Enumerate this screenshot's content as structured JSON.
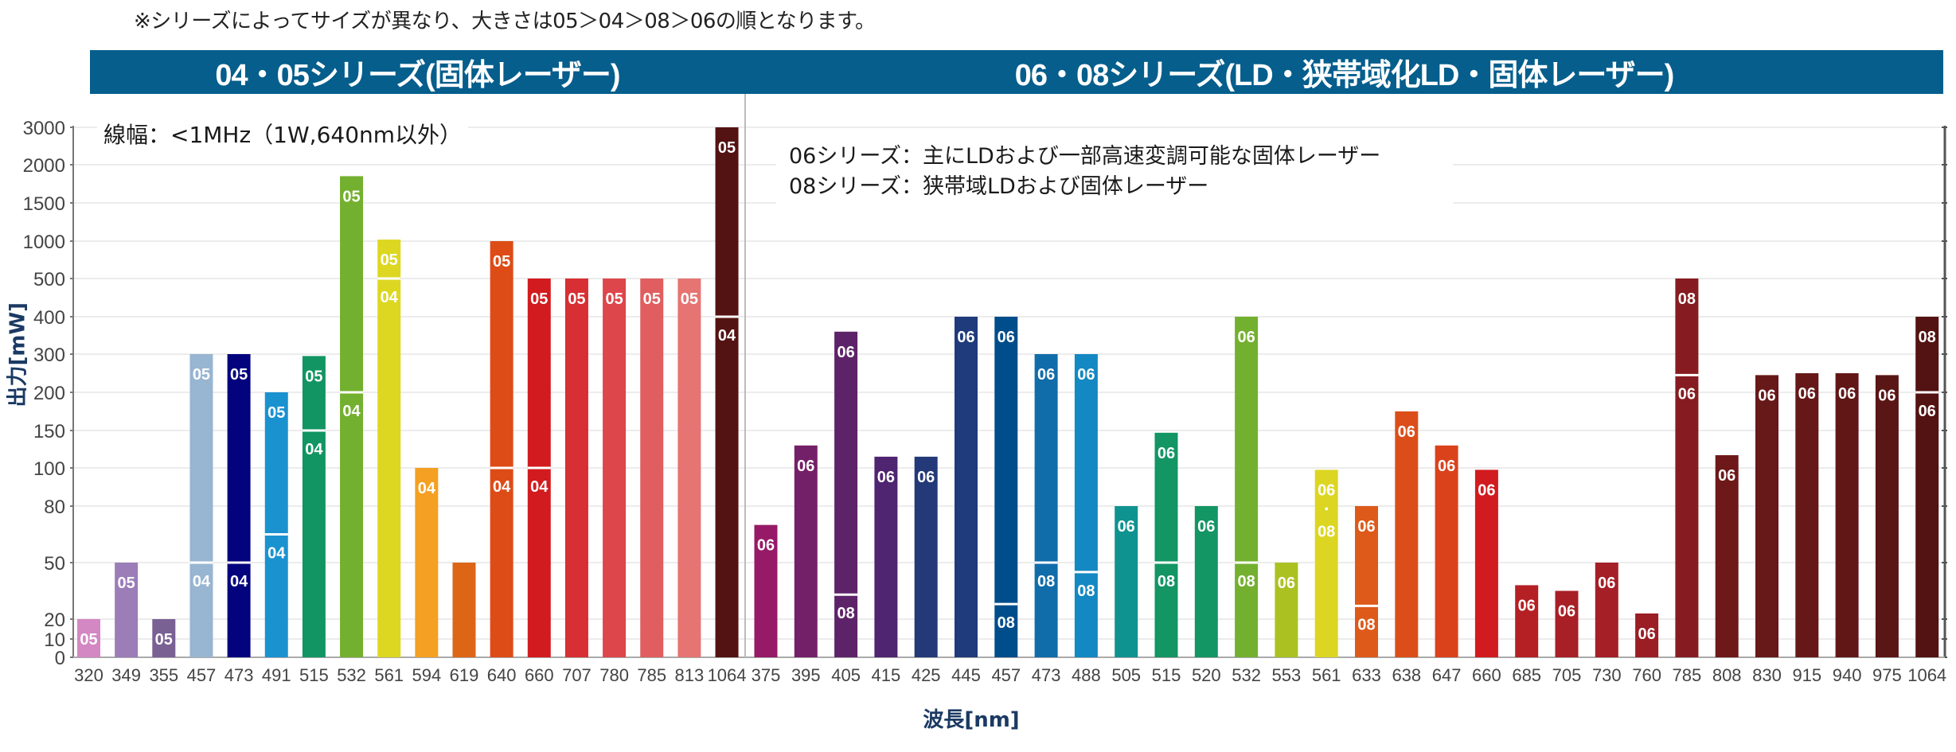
{
  "note_top": "※シリーズによってサイズが異なり、大きさは05＞04＞08＞06の順となります。",
  "bands": {
    "left": "04・05シリーズ(固体レーザー)",
    "right": "06・08シリーズ(LD・狭帯域化LD・固体レーザー)"
  },
  "linewidth_note": "線幅：<1MHz（1W,640nm以外）",
  "legend": {
    "line1": "06シリーズ：主にLDおよび一部高速変調可能な固体レーザー",
    "line2": "08シリーズ：狭帯域LDおよび固体レーザー"
  },
  "colors": {
    "band": "#055E8C",
    "axis_label": "#1B3A63",
    "grid": "#ececec",
    "axis": "#777777"
  },
  "chart_data": {
    "type": "bar",
    "title": "",
    "xlabel": "波長[nm]",
    "ylabel": "出力[mW]",
    "y_scale": "custom-nonlinear",
    "yticks": [
      0,
      10,
      20,
      50,
      80,
      100,
      150,
      200,
      300,
      400,
      500,
      1000,
      1500,
      2000,
      3000
    ],
    "ytick_labels": [
      "0",
      "10",
      "20",
      "50",
      "80",
      "100",
      "150",
      "200",
      "300",
      "400",
      "500",
      "1000",
      "1500",
      "2000",
      "3000"
    ],
    "ylim": [
      0,
      3000
    ],
    "grid": true,
    "groups": [
      {
        "name": "04・05シリーズ",
        "bars": [
          {
            "x": "320",
            "value": 20,
            "color": "#D387C3",
            "segments": [
              {
                "series": "05"
              }
            ]
          },
          {
            "x": "349",
            "value": 50,
            "color": "#9B7DB8",
            "segments": [
              {
                "series": "05"
              }
            ]
          },
          {
            "x": "355",
            "value": 20,
            "color": "#7A6194",
            "segments": [
              {
                "series": "05"
              }
            ]
          },
          {
            "x": "457",
            "value": 300,
            "color": "#98B5D1",
            "split": 50,
            "segments": [
              {
                "series": "05"
              },
              {
                "series": "04"
              }
            ]
          },
          {
            "x": "473",
            "value": 300,
            "color": "#03037E",
            "split": 50,
            "segments": [
              {
                "series": "05"
              },
              {
                "series": "04"
              }
            ]
          },
          {
            "x": "491",
            "value": 200,
            "color": "#1A92D0",
            "split": 65,
            "segments": [
              {
                "series": "05"
              },
              {
                "series": "04"
              }
            ]
          },
          {
            "x": "515",
            "value": 295,
            "color": "#129562",
            "split": 150,
            "segments": [
              {
                "series": "05"
              },
              {
                "series": "04"
              }
            ]
          },
          {
            "x": "532",
            "value": 1850,
            "color": "#74B02F",
            "split": 200,
            "segments": [
              {
                "series": "05"
              },
              {
                "series": "04"
              }
            ]
          },
          {
            "x": "561",
            "value": 1020,
            "color": "#DDD722",
            "split": 500,
            "segments": [
              {
                "series": "05"
              },
              {
                "series": "04"
              }
            ]
          },
          {
            "x": "594",
            "value": 100,
            "color": "#F4A023",
            "segments": [
              {
                "series": "04"
              }
            ]
          },
          {
            "x": "619",
            "value": 50,
            "color": "#DD6516",
            "segments": []
          },
          {
            "x": "640",
            "value": 1000,
            "color": "#DD4C17",
            "split": 100,
            "segments": [
              {
                "series": "05"
              },
              {
                "series": "04"
              }
            ]
          },
          {
            "x": "660",
            "value": 500,
            "color": "#D21B1E",
            "split": 100,
            "segments": [
              {
                "series": "05"
              },
              {
                "series": "04"
              }
            ]
          },
          {
            "x": "707",
            "value": 500,
            "color": "#D72F33",
            "segments": [
              {
                "series": "05"
              }
            ]
          },
          {
            "x": "780",
            "value": 500,
            "color": "#DD464B",
            "segments": [
              {
                "series": "05"
              }
            ]
          },
          {
            "x": "785",
            "value": 500,
            "color": "#E05E5F",
            "segments": [
              {
                "series": "05"
              }
            ]
          },
          {
            "x": "813",
            "value": 500,
            "color": "#E57473",
            "segments": [
              {
                "series": "05"
              }
            ]
          },
          {
            "x": "1064",
            "value": 3000,
            "color": "#531312",
            "split": 400,
            "segments": [
              {
                "series": "05"
              },
              {
                "series": "04"
              }
            ]
          }
        ]
      },
      {
        "name": "06・08シリーズ",
        "bars": [
          {
            "x": "375",
            "value": 70,
            "color": "#961A68",
            "segments": [
              {
                "series": "06"
              }
            ]
          },
          {
            "x": "395",
            "value": 130,
            "color": "#742068",
            "segments": [
              {
                "series": "06"
              }
            ]
          },
          {
            "x": "405",
            "value": 360,
            "color": "#5D2368",
            "split": 33,
            "segments": [
              {
                "series": "06"
              },
              {
                "series": "08"
              }
            ]
          },
          {
            "x": "415",
            "value": 115,
            "color": "#4F2470",
            "segments": [
              {
                "series": "06"
              }
            ]
          },
          {
            "x": "425",
            "value": 115,
            "color": "#233978",
            "segments": [
              {
                "series": "06"
              }
            ]
          },
          {
            "x": "445",
            "value": 400,
            "color": "#1F3B7B",
            "segments": [
              {
                "series": "06"
              }
            ]
          },
          {
            "x": "457",
            "value": 400,
            "color": "#004D8B",
            "split": 28,
            "segments": [
              {
                "series": "06"
              },
              {
                "series": "08"
              }
            ]
          },
          {
            "x": "473",
            "value": 300,
            "color": "#116CAA",
            "split": 50,
            "segments": [
              {
                "series": "06"
              },
              {
                "series": "08"
              }
            ]
          },
          {
            "x": "488",
            "value": 300,
            "color": "#1488C2",
            "split": 45,
            "segments": [
              {
                "series": "06"
              },
              {
                "series": "08"
              }
            ]
          },
          {
            "x": "505",
            "value": 80,
            "color": "#0F9391",
            "segments": [
              {
                "series": "06"
              }
            ]
          },
          {
            "x": "515",
            "value": 147,
            "color": "#139564",
            "split": 50,
            "segments": [
              {
                "series": "06"
              },
              {
                "series": "08"
              }
            ]
          },
          {
            "x": "520",
            "value": 80,
            "color": "#139564",
            "segments": [
              {
                "series": "06"
              }
            ]
          },
          {
            "x": "532",
            "value": 400,
            "color": "#74B02F",
            "split": 50,
            "segments": [
              {
                "series": "06"
              },
              {
                "series": "08"
              }
            ]
          },
          {
            "x": "553",
            "value": 50,
            "color": "#ABC122",
            "segments": [
              {
                "series": "06"
              }
            ]
          },
          {
            "x": "561",
            "value": 99,
            "color": "#DCD622",
            "segments": [
              {
                "series": "06",
                "and": "・",
                "series2": "08"
              }
            ]
          },
          {
            "x": "633",
            "value": 80,
            "color": "#DD5A1A",
            "split": 27,
            "segments": [
              {
                "series": "06"
              },
              {
                "series": "08"
              }
            ]
          },
          {
            "x": "638",
            "value": 175,
            "color": "#DC4E19",
            "segments": [
              {
                "series": "06"
              }
            ]
          },
          {
            "x": "647",
            "value": 130,
            "color": "#DA421C",
            "segments": [
              {
                "series": "06"
              }
            ]
          },
          {
            "x": "660",
            "value": 99,
            "color": "#D21B1E",
            "segments": [
              {
                "series": "06"
              }
            ]
          },
          {
            "x": "685",
            "value": 38,
            "color": "#B52024",
            "segments": [
              {
                "series": "06"
              }
            ]
          },
          {
            "x": "705",
            "value": 35,
            "color": "#A81F26",
            "segments": [
              {
                "series": "06"
              }
            ]
          },
          {
            "x": "730",
            "value": 50,
            "color": "#A51F26",
            "segments": [
              {
                "series": "06"
              }
            ]
          },
          {
            "x": "760",
            "value": 23,
            "color": "#9A1E24",
            "segments": [
              {
                "series": "06"
              }
            ]
          },
          {
            "x": "785",
            "value": 500,
            "color": "#861C21",
            "split": 245,
            "segments": [
              {
                "series": "08"
              },
              {
                "series": "06"
              }
            ]
          },
          {
            "x": "808",
            "value": 117,
            "color": "#6E1819",
            "segments": [
              {
                "series": "06"
              }
            ]
          },
          {
            "x": "830",
            "value": 245,
            "color": "#671818",
            "segments": [
              {
                "series": "06"
              }
            ]
          },
          {
            "x": "915",
            "value": 250,
            "color": "#661818",
            "segments": [
              {
                "series": "06"
              }
            ]
          },
          {
            "x": "940",
            "value": 250,
            "color": "#621717",
            "segments": [
              {
                "series": "06"
              }
            ]
          },
          {
            "x": "975",
            "value": 245,
            "color": "#5A1515",
            "segments": [
              {
                "series": "06"
              }
            ]
          },
          {
            "x": "1064",
            "value": 400,
            "color": "#531312",
            "split": 200,
            "segments": [
              {
                "series": "08"
              },
              {
                "series": "06"
              }
            ]
          }
        ]
      }
    ]
  }
}
